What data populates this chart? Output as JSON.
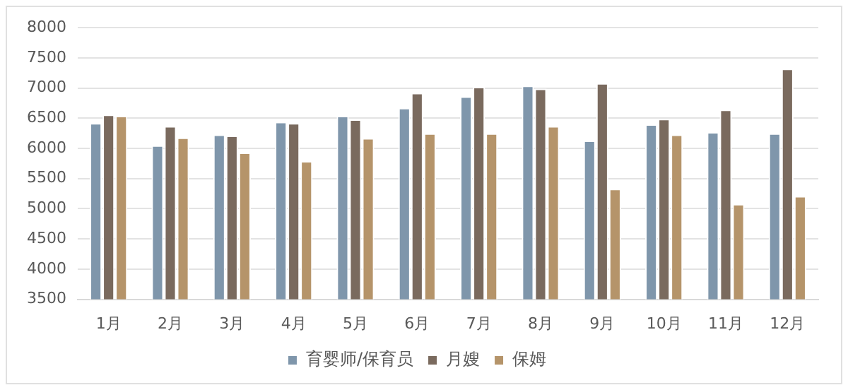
{
  "chart_data": {
    "type": "bar",
    "categories": [
      "1月",
      "2月",
      "3月",
      "4月",
      "5月",
      "6月",
      "7月",
      "8月",
      "9月",
      "10月",
      "11月",
      "12月"
    ],
    "series": [
      {
        "name": "育婴师/保育员",
        "color": "#7f96ab",
        "values": [
          6420,
          6050,
          6230,
          6440,
          6540,
          6670,
          6860,
          7040,
          6130,
          6400,
          6270,
          6250
        ]
      },
      {
        "name": "月嫂",
        "color": "#7a6a5e",
        "values": [
          6560,
          6370,
          6210,
          6420,
          6480,
          6920,
          7020,
          6990,
          7080,
          6490,
          6640,
          7320
        ]
      },
      {
        "name": "保姆",
        "color": "#b5946a",
        "values": [
          6540,
          6180,
          5930,
          5790,
          6170,
          6250,
          6250,
          6370,
          5330,
          6230,
          5080,
          5210
        ]
      }
    ],
    "ylim": [
      3500,
      8000
    ],
    "yticks": [
      3500,
      4000,
      4500,
      5000,
      5500,
      6000,
      6500,
      7000,
      7500,
      8000
    ],
    "grid": "y",
    "legend": "bottom"
  }
}
